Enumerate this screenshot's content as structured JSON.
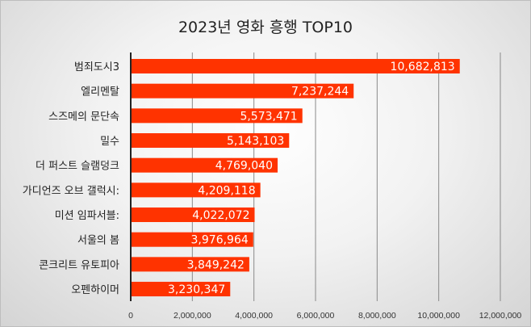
{
  "chart_data": {
    "type": "bar",
    "orientation": "horizontal",
    "title": "2023년 영화 흥행 TOP10",
    "categories": [
      "범죄도시3",
      "엘리멘탈",
      "스즈메의 문단속",
      "밀수",
      "더 퍼스트 슬램덩크",
      "가디언즈 오브 갤럭시:",
      "미션 임파서블:",
      "서울의 봄",
      "콘크리트 유토피아",
      "오펜하이머"
    ],
    "values": [
      10682813,
      7237244,
      5573471,
      5143103,
      4769040,
      4209118,
      4022072,
      3976964,
      3849242,
      3230347
    ],
    "data_labels": [
      "10,682,813",
      "7,237,244",
      "5,573,471",
      "5,143,103",
      "4,769,040",
      "4,209,118",
      "4,022,072",
      "3,976,964",
      "3,849,242",
      "3,230,347"
    ],
    "xlim": [
      0,
      12000000
    ],
    "x_ticks": [
      0,
      2000000,
      4000000,
      6000000,
      8000000,
      10000000,
      12000000
    ],
    "x_tick_labels": [
      "0",
      "2,000,000",
      "4,000,000",
      "6,000,000",
      "8,000,000",
      "10,000,000",
      "12,000,000"
    ],
    "grid": true,
    "bar_color": "#ff3300"
  }
}
